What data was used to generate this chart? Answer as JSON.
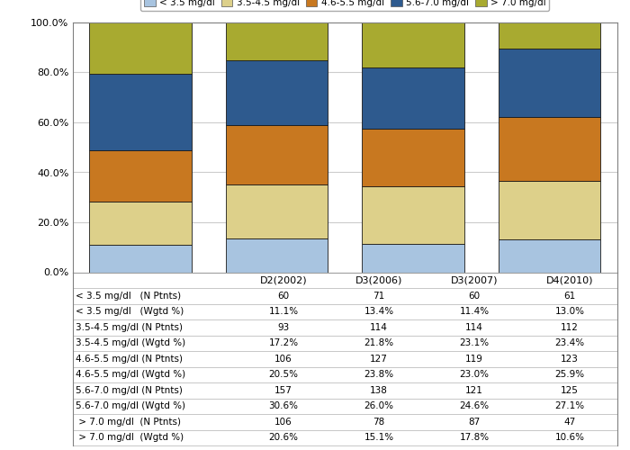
{
  "categories": [
    "D2(2002)",
    "D3(2006)",
    "D3(2007)",
    "D4(2010)"
  ],
  "series": [
    {
      "label": "< 3.5 mg/dl",
      "color": "#a8c4e0",
      "values": [
        11.1,
        13.4,
        11.4,
        13.0
      ]
    },
    {
      "label": "3.5-4.5 mg/dl",
      "color": "#ddd08a",
      "values": [
        17.2,
        21.8,
        23.1,
        23.4
      ]
    },
    {
      "label": "4.6-5.5 mg/dl",
      "color": "#c87820",
      "values": [
        20.5,
        23.8,
        23.0,
        25.9
      ]
    },
    {
      "label": "5.6-7.0 mg/dl",
      "color": "#2e5a8e",
      "values": [
        30.6,
        26.0,
        24.6,
        27.1
      ]
    },
    {
      "label": "> 7.0 mg/dl",
      "color": "#a8aa30",
      "values": [
        20.6,
        15.1,
        17.8,
        10.6
      ]
    }
  ],
  "table_rows": [
    {
      "label": "< 3.5 mg/dl   (N Ptnts)",
      "values": [
        "60",
        "71",
        "60",
        "61"
      ]
    },
    {
      "label": "< 3.5 mg/dl   (Wgtd %)",
      "values": [
        "11.1%",
        "13.4%",
        "11.4%",
        "13.0%"
      ]
    },
    {
      "label": "3.5-4.5 mg/dl (N Ptnts)",
      "values": [
        "93",
        "114",
        "114",
        "112"
      ]
    },
    {
      "label": "3.5-4.5 mg/dl (Wgtd %)",
      "values": [
        "17.2%",
        "21.8%",
        "23.1%",
        "23.4%"
      ]
    },
    {
      "label": "4.6-5.5 mg/dl (N Ptnts)",
      "values": [
        "106",
        "127",
        "119",
        "123"
      ]
    },
    {
      "label": "4.6-5.5 mg/dl (Wgtd %)",
      "values": [
        "20.5%",
        "23.8%",
        "23.0%",
        "25.9%"
      ]
    },
    {
      "label": "5.6-7.0 mg/dl (N Ptnts)",
      "values": [
        "157",
        "138",
        "121",
        "125"
      ]
    },
    {
      "label": "5.6-7.0 mg/dl (Wgtd %)",
      "values": [
        "30.6%",
        "26.0%",
        "24.6%",
        "27.1%"
      ]
    },
    {
      "label": " > 7.0 mg/dl  (N Ptnts)",
      "values": [
        "106",
        "78",
        "87",
        "47"
      ]
    },
    {
      "label": " > 7.0 mg/dl  (Wgtd %)",
      "values": [
        "20.6%",
        "15.1%",
        "17.8%",
        "10.6%"
      ]
    }
  ],
  "ylim": [
    0,
    100
  ],
  "bar_width": 0.75,
  "fig_width": 7.0,
  "fig_height": 5.0,
  "background_color": "#ffffff",
  "grid_color": "#cccccc",
  "border_color": "#808080",
  "table_line_color": "#b0b0b0"
}
